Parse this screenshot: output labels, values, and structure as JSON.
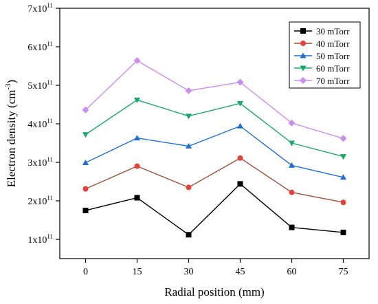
{
  "chart_data": {
    "type": "line",
    "xlabel": "Radial position (mm)",
    "ylabel": {
      "main": "Electron density (cm",
      "sup": "-3",
      "close": ")"
    },
    "x": [
      0,
      15,
      30,
      45,
      60,
      75
    ],
    "x_ticks": [
      "0",
      "15",
      "30",
      "45",
      "60",
      "75"
    ],
    "xlim": [
      -7.5,
      82.5
    ],
    "ylim": [
      50000000000.0,
      700000000000.0
    ],
    "y_ticks": [
      {
        "value": 100000000000.0,
        "mantissa": "1x10",
        "exp": "11"
      },
      {
        "value": 200000000000.0,
        "mantissa": "2x10",
        "exp": "11"
      },
      {
        "value": 300000000000.0,
        "mantissa": "3x10",
        "exp": "11"
      },
      {
        "value": 400000000000.0,
        "mantissa": "4x10",
        "exp": "11"
      },
      {
        "value": 500000000000.0,
        "mantissa": "5x10",
        "exp": "11"
      },
      {
        "value": 600000000000.0,
        "mantissa": "6x10",
        "exp": "11"
      },
      {
        "value": 700000000000.0,
        "mantissa": "7x10",
        "exp": "11"
      }
    ],
    "grid": false,
    "legend_position": "top-right",
    "series": [
      {
        "name": "30 mTorr",
        "marker": "square",
        "color": "#000000",
        "values": [
          175000000000.0,
          208000000000.0,
          112000000000.0,
          244000000000.0,
          131000000000.0,
          118000000000.0
        ]
      },
      {
        "name": "40 mTorr",
        "marker": "circle",
        "color": "#e8413a",
        "line_color": "#a0503a",
        "values": [
          231000000000.0,
          290000000000.0,
          235000000000.0,
          311000000000.0,
          222000000000.0,
          196000000000.0
        ]
      },
      {
        "name": "50 mTorr",
        "marker": "triangle-up",
        "color": "#1f6fd4",
        "values": [
          299000000000.0,
          363000000000.0,
          342000000000.0,
          394000000000.0,
          292000000000.0,
          261000000000.0
        ]
      },
      {
        "name": "60 mTorr",
        "marker": "triangle-down",
        "color": "#1aa86a",
        "values": [
          372000000000.0,
          462000000000.0,
          420000000000.0,
          453000000000.0,
          350000000000.0,
          315000000000.0
        ]
      },
      {
        "name": "70 mTorr",
        "marker": "diamond",
        "color": "#c98ef0",
        "values": [
          436000000000.0,
          564000000000.0,
          486000000000.0,
          508000000000.0,
          402000000000.0,
          362000000000.0
        ]
      }
    ]
  }
}
